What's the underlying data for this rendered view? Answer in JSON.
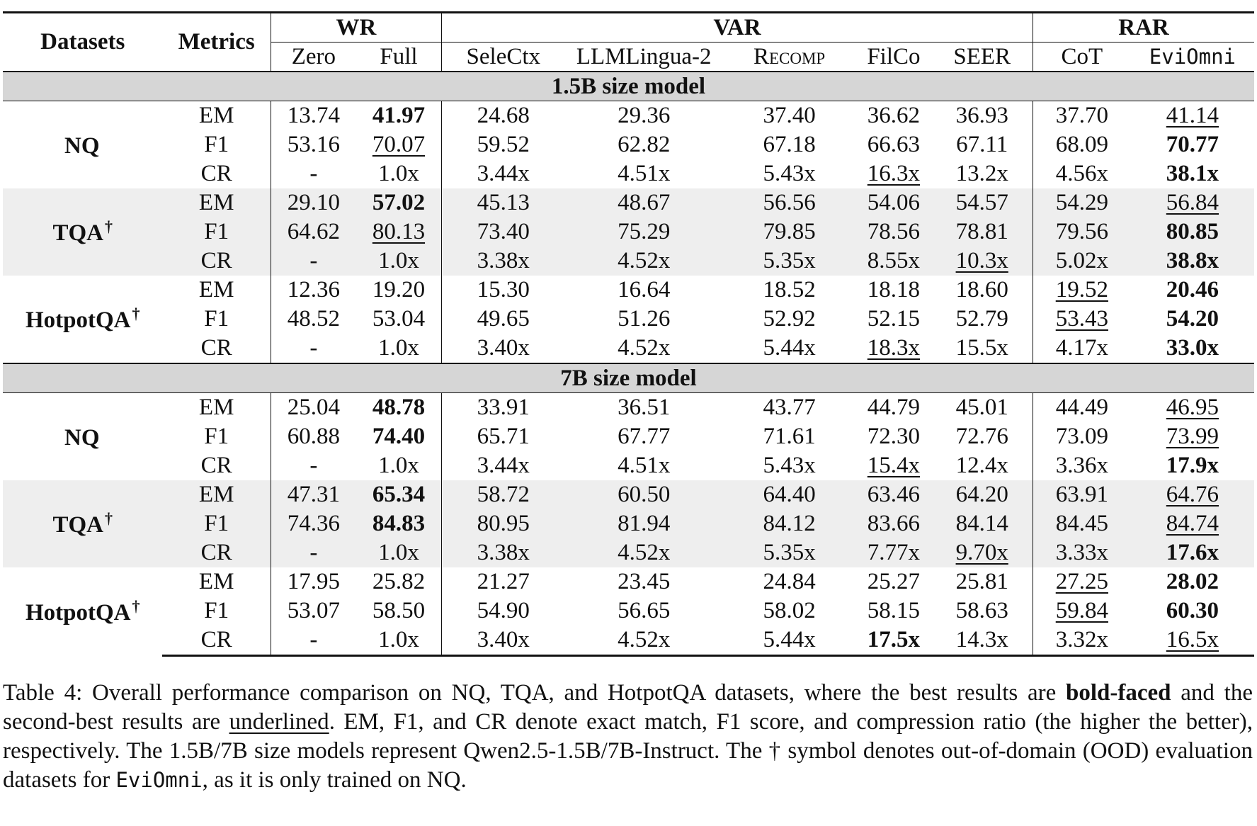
{
  "table": {
    "header": {
      "datasets": "Datasets",
      "metrics": "Metrics",
      "groups": [
        {
          "label": "WR",
          "columns": [
            "Zero",
            "Full"
          ]
        },
        {
          "label": "VAR",
          "columns": [
            "SeleCtx",
            "LLMLingua-2",
            "Recomp",
            "FilCo",
            "SEER"
          ]
        },
        {
          "label": "RAR",
          "columns": [
            "CoT",
            "EviOmni"
          ]
        }
      ]
    },
    "sections": [
      {
        "title": "1.5B size model",
        "datasets": [
          {
            "name": "NQ",
            "dagger": "",
            "rows": [
              {
                "metric": "EM",
                "values": [
                  "13.74",
                  "41.97",
                  "24.68",
                  "29.36",
                  "37.40",
                  "36.62",
                  "36.93",
                  "37.70",
                  "41.14"
                ],
                "bold": [
                  1
                ],
                "underline": [
                  8
                ]
              },
              {
                "metric": "F1",
                "values": [
                  "53.16",
                  "70.07",
                  "59.52",
                  "62.82",
                  "67.18",
                  "66.63",
                  "67.11",
                  "68.09",
                  "70.77"
                ],
                "bold": [
                  8
                ],
                "underline": [
                  1
                ]
              },
              {
                "metric": "CR",
                "values": [
                  "-",
                  "1.0x",
                  "3.44x",
                  "4.51x",
                  "5.43x",
                  "16.3x",
                  "13.2x",
                  "4.56x",
                  "38.1x"
                ],
                "bold": [
                  8
                ],
                "underline": [
                  5
                ]
              }
            ]
          },
          {
            "name": "TQA",
            "dagger": "†",
            "rows": [
              {
                "metric": "EM",
                "values": [
                  "29.10",
                  "57.02",
                  "45.13",
                  "48.67",
                  "56.56",
                  "54.06",
                  "54.57",
                  "54.29",
                  "56.84"
                ],
                "bold": [
                  1
                ],
                "underline": [
                  8
                ]
              },
              {
                "metric": "F1",
                "values": [
                  "64.62",
                  "80.13",
                  "73.40",
                  "75.29",
                  "79.85",
                  "78.56",
                  "78.81",
                  "79.56",
                  "80.85"
                ],
                "bold": [
                  8
                ],
                "underline": [
                  1
                ]
              },
              {
                "metric": "CR",
                "values": [
                  "-",
                  "1.0x",
                  "3.38x",
                  "4.52x",
                  "5.35x",
                  "8.55x",
                  "10.3x",
                  "5.02x",
                  "38.8x"
                ],
                "bold": [
                  8
                ],
                "underline": [
                  6
                ]
              }
            ]
          },
          {
            "name": "HotpotQA",
            "dagger": "†",
            "rows": [
              {
                "metric": "EM",
                "values": [
                  "12.36",
                  "19.20",
                  "15.30",
                  "16.64",
                  "18.52",
                  "18.18",
                  "18.60",
                  "19.52",
                  "20.46"
                ],
                "bold": [
                  8
                ],
                "underline": [
                  7
                ]
              },
              {
                "metric": "F1",
                "values": [
                  "48.52",
                  "53.04",
                  "49.65",
                  "51.26",
                  "52.92",
                  "52.15",
                  "52.79",
                  "53.43",
                  "54.20"
                ],
                "bold": [
                  8
                ],
                "underline": [
                  7
                ]
              },
              {
                "metric": "CR",
                "values": [
                  "-",
                  "1.0x",
                  "3.40x",
                  "4.52x",
                  "5.44x",
                  "18.3x",
                  "15.5x",
                  "4.17x",
                  "33.0x"
                ],
                "bold": [
                  8
                ],
                "underline": [
                  5
                ]
              }
            ]
          }
        ]
      },
      {
        "title": "7B size model",
        "datasets": [
          {
            "name": "NQ",
            "dagger": "",
            "rows": [
              {
                "metric": "EM",
                "values": [
                  "25.04",
                  "48.78",
                  "33.91",
                  "36.51",
                  "43.77",
                  "44.79",
                  "45.01",
                  "44.49",
                  "46.95"
                ],
                "bold": [
                  1
                ],
                "underline": [
                  8
                ]
              },
              {
                "metric": "F1",
                "values": [
                  "60.88",
                  "74.40",
                  "65.71",
                  "67.77",
                  "71.61",
                  "72.30",
                  "72.76",
                  "73.09",
                  "73.99"
                ],
                "bold": [
                  1
                ],
                "underline": [
                  8
                ]
              },
              {
                "metric": "CR",
                "values": [
                  "-",
                  "1.0x",
                  "3.44x",
                  "4.51x",
                  "5.43x",
                  "15.4x",
                  "12.4x",
                  "3.36x",
                  "17.9x"
                ],
                "bold": [
                  8
                ],
                "underline": [
                  5
                ]
              }
            ]
          },
          {
            "name": "TQA",
            "dagger": "†",
            "rows": [
              {
                "metric": "EM",
                "values": [
                  "47.31",
                  "65.34",
                  "58.72",
                  "60.50",
                  "64.40",
                  "63.46",
                  "64.20",
                  "63.91",
                  "64.76"
                ],
                "bold": [
                  1
                ],
                "underline": [
                  8
                ]
              },
              {
                "metric": "F1",
                "values": [
                  "74.36",
                  "84.83",
                  "80.95",
                  "81.94",
                  "84.12",
                  "83.66",
                  "84.14",
                  "84.45",
                  "84.74"
                ],
                "bold": [
                  1
                ],
                "underline": [
                  8
                ]
              },
              {
                "metric": "CR",
                "values": [
                  "-",
                  "1.0x",
                  "3.38x",
                  "4.52x",
                  "5.35x",
                  "7.77x",
                  "9.70x",
                  "3.33x",
                  "17.6x"
                ],
                "bold": [
                  8
                ],
                "underline": [
                  6
                ]
              }
            ]
          },
          {
            "name": "HotpotQA",
            "dagger": "†",
            "rows": [
              {
                "metric": "EM",
                "values": [
                  "17.95",
                  "25.82",
                  "21.27",
                  "23.45",
                  "24.84",
                  "25.27",
                  "25.81",
                  "27.25",
                  "28.02"
                ],
                "bold": [
                  8
                ],
                "underline": [
                  7
                ]
              },
              {
                "metric": "F1",
                "values": [
                  "53.07",
                  "58.50",
                  "54.90",
                  "56.65",
                  "58.02",
                  "58.15",
                  "58.63",
                  "59.84",
                  "60.30"
                ],
                "bold": [
                  8
                ],
                "underline": [
                  7
                ]
              },
              {
                "metric": "CR",
                "values": [
                  "-",
                  "1.0x",
                  "3.40x",
                  "4.52x",
                  "5.44x",
                  "17.5x",
                  "14.3x",
                  "3.32x",
                  "16.5x"
                ],
                "bold": [
                  5
                ],
                "underline": [
                  8
                ]
              }
            ]
          }
        ]
      }
    ]
  },
  "caption": {
    "p1": "Table 4: Overall performance comparison on NQ, TQA, and HotpotQA datasets, where the best results are ",
    "bold_word": "bold-faced",
    "p2": " and the second-best results are ",
    "underline_word": "underlined",
    "p3": ". EM, F1, and CR denote exact match, F1 score, and compression ratio (the higher the better), respectively. The 1.5B/7B size models represent Qwen2.5-1.5B/7B-Instruct. The † symbol denotes out-of-domain (OOD) evaluation datasets for ",
    "model_name": "EviOmni",
    "p4": ", as it is only trained on NQ."
  }
}
